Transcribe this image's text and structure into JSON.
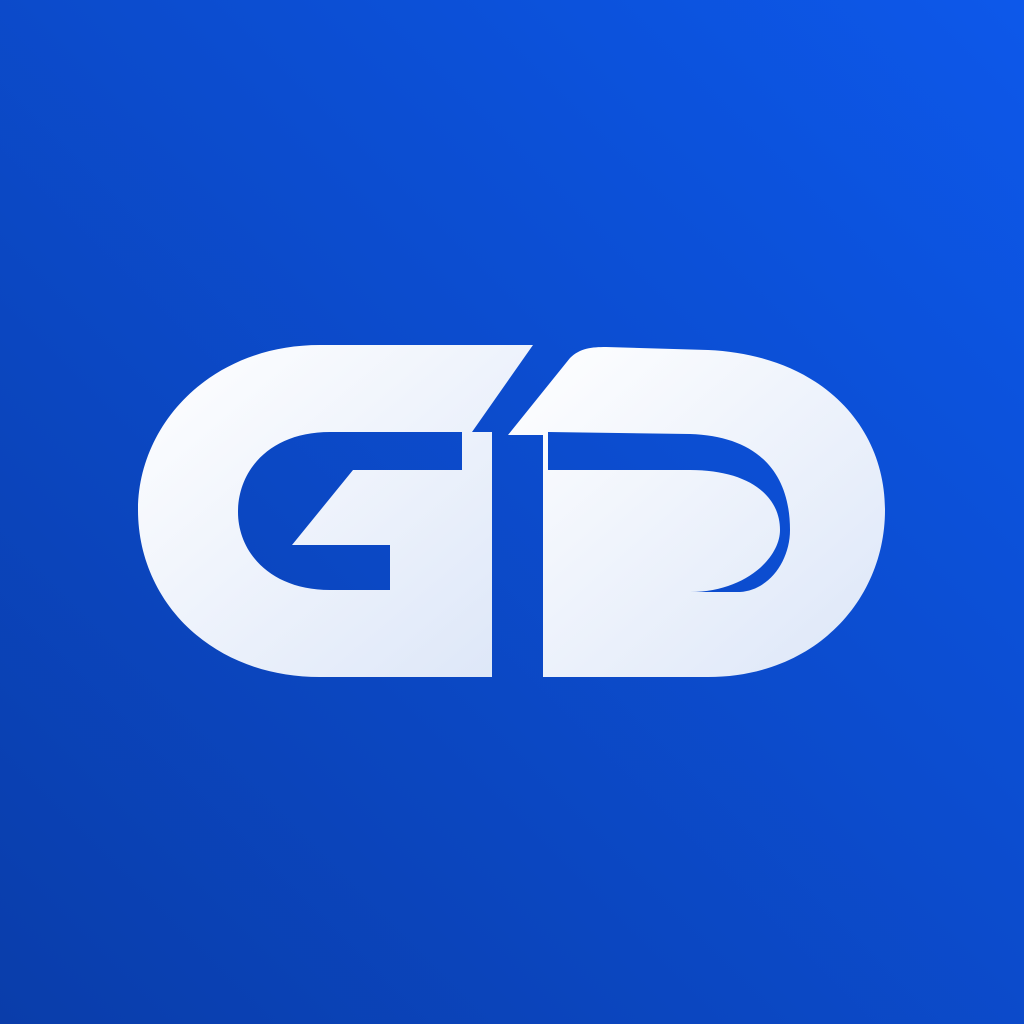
{
  "logo": {
    "icon_name": "gd-monogram-logo-icon",
    "lettering": "GD"
  },
  "colors": {
    "background_light": "#0D58EA",
    "background_dark": "#0A3DAA",
    "mark_light": "#FFFFFF",
    "mark_shade": "#DCE6F8"
  }
}
